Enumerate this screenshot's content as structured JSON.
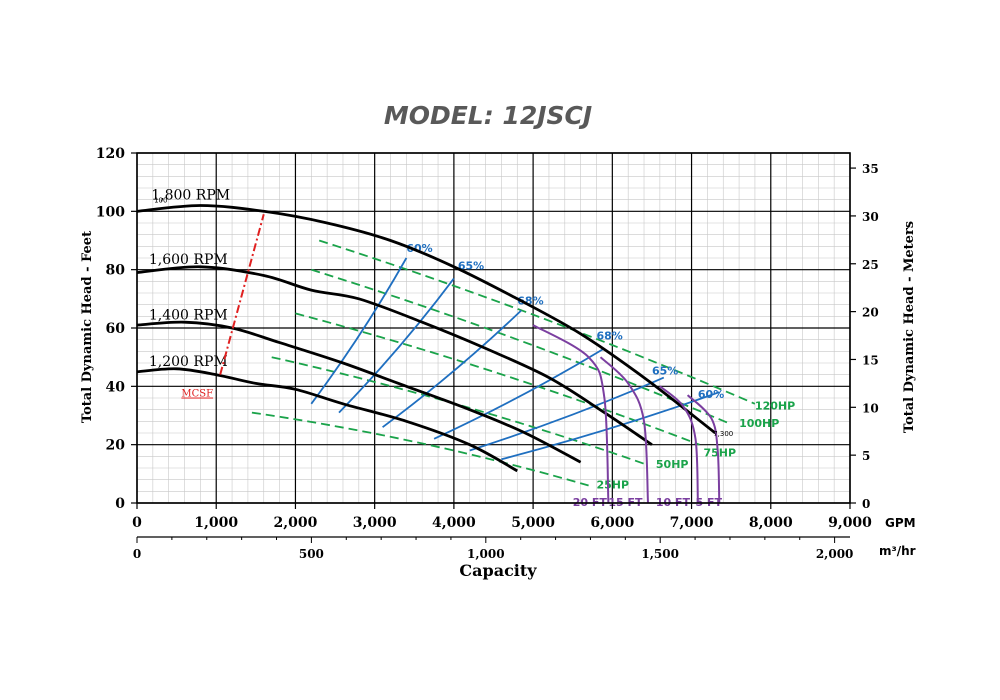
{
  "chart_data": {
    "type": "line",
    "title": "MODEL: 12JSCJ",
    "xlabel": "Capacity",
    "ylabel": "Total Dynamic Head - Feet",
    "ylabel_right": "Total Dynamic Head - Meters",
    "x_unit": "GPM",
    "x2_unit": "m³/hr",
    "xlim": [
      0,
      9000
    ],
    "ylim": [
      0,
      120
    ],
    "x_ticks": [
      "0",
      "1,000",
      "2,000",
      "3,000",
      "4,000",
      "5,000",
      "6,000",
      "7,000",
      "8,000",
      "9,000"
    ],
    "x_tick_values": [
      0,
      1000,
      2000,
      3000,
      4000,
      5000,
      6000,
      7000,
      8000,
      9000
    ],
    "x2_ticks": [
      "0",
      "500",
      "1,000",
      "1,500",
      "2,000"
    ],
    "x2_tick_values": [
      0,
      500,
      1000,
      1500,
      2000
    ],
    "y_ticks": [
      "0",
      "20",
      "40",
      "60",
      "80",
      "100",
      "120"
    ],
    "y_tick_values": [
      0,
      20,
      40,
      60,
      80,
      100,
      120
    ],
    "y2_ticks": [
      "0",
      "5",
      "10",
      "15",
      "20",
      "25",
      "30",
      "35"
    ],
    "y2_tick_values": [
      0,
      5,
      10,
      15,
      20,
      25,
      30,
      35
    ],
    "grid": true,
    "series": [
      {
        "name": "1,800 RPM",
        "x": [
          0,
          800,
          1600,
          2400,
          3200,
          4000,
          4800,
          5600,
          6400,
          7300
        ],
        "y": [
          100,
          102,
          100,
          96,
          90,
          81,
          70,
          58,
          43,
          24
        ]
      },
      {
        "name": "1,600 RPM",
        "x": [
          0,
          800,
          1600,
          2200,
          2800,
          3600,
          4400,
          5200,
          5900,
          6500
        ],
        "y": [
          79,
          81,
          78,
          73,
          70,
          62,
          53,
          43,
          31,
          20
        ]
      },
      {
        "name": "1,400 RPM",
        "x": [
          0,
          600,
          1200,
          1800,
          2600,
          3400,
          4200,
          4900,
          5600
        ],
        "y": [
          61,
          62,
          60,
          55,
          48,
          40,
          32,
          24,
          14
        ]
      },
      {
        "name": "1,200 RPM",
        "x": [
          0,
          500,
          1000,
          1500,
          2000,
          2600,
          3400,
          4200,
          4800
        ],
        "y": [
          45,
          46,
          44,
          41,
          39,
          34,
          28,
          20,
          11
        ]
      }
    ],
    "efficiency_lines": [
      {
        "label": "60%",
        "x": [
          2200,
          3400
        ],
        "y": [
          34,
          84
        ]
      },
      {
        "label": "65%",
        "x": [
          2550,
          4000
        ],
        "y": [
          31,
          77
        ]
      },
      {
        "label": "68%",
        "x": [
          3100,
          4850
        ],
        "y": [
          26,
          66
        ]
      },
      {
        "label": "68%",
        "x": [
          3750,
          5900
        ],
        "y": [
          22,
          53
        ]
      },
      {
        "label": "65%",
        "x": [
          4200,
          6650
        ],
        "y": [
          18,
          43
        ]
      },
      {
        "label": "60%",
        "x": [
          4600,
          7350
        ],
        "y": [
          15,
          38
        ]
      }
    ],
    "horsepower_lines": [
      {
        "label": "25HP",
        "x": [
          1450,
          5700
        ],
        "y": [
          31,
          6
        ]
      },
      {
        "label": "50HP",
        "x": [
          1700,
          6450
        ],
        "y": [
          50,
          13
        ]
      },
      {
        "label": "75HP",
        "x": [
          2000,
          7100
        ],
        "y": [
          65,
          20
        ]
      },
      {
        "label": "100HP",
        "x": [
          2200,
          7500
        ],
        "y": [
          80,
          27
        ]
      },
      {
        "label": "120HP",
        "x": [
          2300,
          7800
        ],
        "y": [
          90,
          34
        ]
      }
    ],
    "npsh_curves": [
      {
        "label": "20 FT",
        "x": [
          5000,
          5700,
          5900,
          5950
        ],
        "y": [
          61,
          50,
          36,
          0
        ]
      },
      {
        "label": "15 FT",
        "x": [
          5850,
          6200,
          6400,
          6450
        ],
        "y": [
          50,
          41,
          28,
          0
        ]
      },
      {
        "label": "10 FT",
        "x": [
          6600,
          6900,
          7050,
          7080
        ],
        "y": [
          40,
          33,
          22,
          0
        ]
      },
      {
        "label": "5 FT",
        "x": [
          6950,
          7250,
          7330,
          7350
        ],
        "y": [
          37,
          29,
          18,
          0
        ]
      }
    ],
    "mcsf_line": {
      "label": "MCSF",
      "x": [
        1050,
        1600
      ],
      "y": [
        44,
        99
      ]
    },
    "annotations": [
      {
        "text": "100",
        "x": 300,
        "y": 103
      },
      {
        "text": "7,300",
        "x": 7400,
        "y": 23
      }
    ],
    "colors": {
      "head": "#000000",
      "efficiency": "#1f6fc0",
      "horsepower": "#1aa34a",
      "npsh": "#7b3fa0",
      "mcsf": "#e02020",
      "grid_major": "#000000",
      "grid_minor": "#c8c8c8",
      "title": "#595959"
    }
  }
}
